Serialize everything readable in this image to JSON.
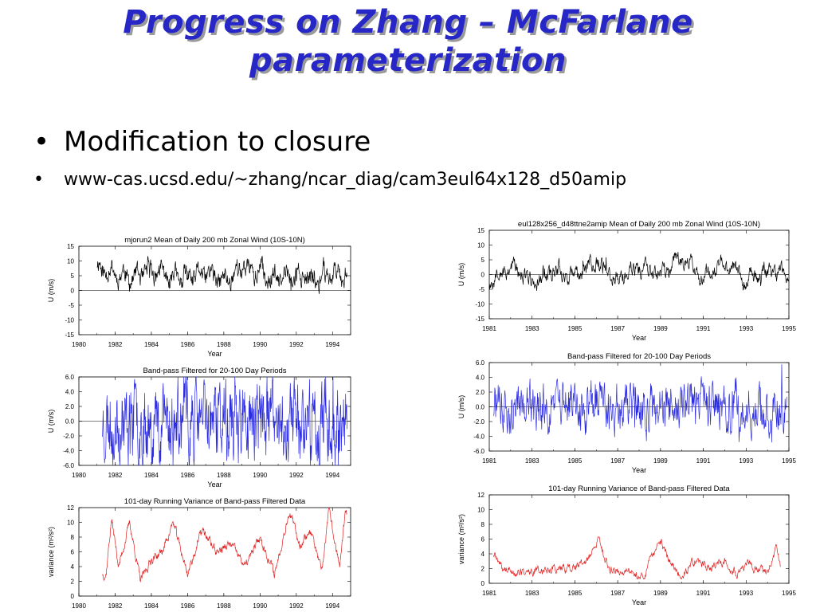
{
  "slide": {
    "title_line1": "Progress on Zhang – McFarlane",
    "title_line2": "parameterization",
    "bullets": [
      "Modification to closure",
      "www-cas.ucsd.edu/~zhang/ncar_diag/cam3eul64x128_d50amip"
    ]
  },
  "colors": {
    "title": "#2727c8",
    "title_shadow": "#9a9a9a",
    "wind": "#000000",
    "filtered": "#2b2be0",
    "variance": "#e02020"
  },
  "chart_data": [
    {
      "type": "line",
      "panel": "left-top",
      "title": "mjorun2 Mean of Daily 200 mb Zonal Wind (10S-10N)",
      "xlabel": "Year",
      "ylabel": "U (m/s)",
      "xlim": [
        1980,
        1995
      ],
      "ylim": [
        -15,
        15
      ],
      "xticks": [
        "1980",
        "1982",
        "1984",
        "1986",
        "1988",
        "1990",
        "1992",
        "1994"
      ],
      "yticks": [
        "15",
        "10",
        "5",
        "0",
        "-5",
        "-10",
        "-15"
      ],
      "xrange": [
        1981,
        1994.8
      ],
      "base": 5,
      "amp": 5.5,
      "noise": 2.5,
      "color": "#000000",
      "seed": 11,
      "reference_line": 0,
      "x": [
        1981,
        1982,
        1983,
        1984,
        1985,
        1986,
        1987,
        1988,
        1989,
        1990,
        1991,
        1992,
        1993,
        1994
      ],
      "y": [
        8,
        6,
        4,
        7,
        5,
        4,
        6,
        3,
        8,
        6,
        4,
        5,
        3,
        6
      ]
    },
    {
      "type": "line",
      "panel": "left-middle",
      "title": "Band-pass Filtered for 20-100 Day Periods",
      "xlabel": "Year",
      "ylabel": "U (m/s)",
      "xlim": [
        1980,
        1995
      ],
      "ylim": [
        -6,
        6
      ],
      "xticks": [
        "1980",
        "1982",
        "1984",
        "1986",
        "1988",
        "1990",
        "1992",
        "1994"
      ],
      "yticks": [
        "6.0",
        "4.0",
        "2.0",
        "0.0",
        "-2.0",
        "-4.0",
        "-6.0"
      ],
      "xrange": [
        1981.3,
        1994.8
      ],
      "base": 0,
      "amp": 0,
      "noise": 4.2,
      "color": "#2b2be0",
      "seed": 23,
      "reference_line": 0,
      "x": [
        1982,
        1984,
        1986,
        1988,
        1990,
        1992,
        1994
      ],
      "y": [
        0,
        0,
        0,
        0,
        0,
        0,
        0
      ]
    },
    {
      "type": "line",
      "panel": "left-bottom",
      "title": "101-day Running Variance of Band-pass Filtered Data",
      "xlabel": "Year",
      "ylabel": "variance (m²/s²)",
      "xlim": [
        1980,
        1995
      ],
      "ylim": [
        0,
        12
      ],
      "xticks": [
        "1980",
        "1982",
        "1984",
        "1986",
        "1988",
        "1990",
        "1992",
        "1994"
      ],
      "yticks": [
        "12",
        "10",
        "8",
        "6",
        "4",
        "2",
        "0"
      ],
      "xrange": [
        1981.3,
        1994.8
      ],
      "color": "#e02020",
      "seed": 37,
      "variance": true,
      "x": [
        1981.5,
        1981.8,
        1982.2,
        1982.8,
        1983.4,
        1984,
        1984.6,
        1985.2,
        1986,
        1986.8,
        1987.6,
        1988.4,
        1989.2,
        1990,
        1990.8,
        1991.6,
        1992.2,
        1992.8,
        1993.4,
        1993.8,
        1994.4,
        1994.7
      ],
      "y": [
        3,
        10.5,
        4,
        10,
        2,
        5,
        6,
        10,
        3,
        9,
        6,
        7,
        4,
        8,
        3,
        11.5,
        7,
        9,
        3,
        11.5,
        4,
        11
      ]
    },
    {
      "type": "line",
      "panel": "right-top",
      "title": "eul128x256_d48ttne2amip Mean of Daily 200 mb Zonal Wind (10S-10N)",
      "xlabel": "Year",
      "ylabel": "U (m/s)",
      "xlim": [
        1981,
        1995
      ],
      "ylim": [
        -15,
        15
      ],
      "xticks": [
        "1981",
        "1983",
        "1985",
        "1987",
        "1989",
        "1991",
        "1993",
        "1995"
      ],
      "yticks": [
        "15",
        "10",
        "5",
        "0",
        "-5",
        "-10",
        "-15"
      ],
      "xrange": [
        1981,
        1995
      ],
      "base": 1,
      "amp": 4,
      "noise": 2.2,
      "color": "#000000",
      "seed": 53,
      "reference_line": 0,
      "x": [
        1981,
        1982,
        1983,
        1984,
        1985,
        1986,
        1987,
        1988,
        1989,
        1990,
        1991,
        1992,
        1993,
        1994,
        1995
      ],
      "y": [
        -2,
        3,
        -3,
        2,
        -1,
        5,
        -2,
        3,
        0,
        6,
        -1,
        4,
        -2,
        1,
        0
      ]
    },
    {
      "type": "line",
      "panel": "right-middle",
      "title": "Band-pass Filtered for 20-100 Day Periods",
      "xlabel": "Year",
      "ylabel": "U (m/s)",
      "xlim": [
        1981,
        1995
      ],
      "ylim": [
        -6,
        6
      ],
      "xticks": [
        "1981",
        "1983",
        "1985",
        "1987",
        "1989",
        "1991",
        "1993",
        "1995"
      ],
      "yticks": [
        "6.0",
        "4.0",
        "2.0",
        "0.0",
        "-2.0",
        "-4.0",
        "-6.0"
      ],
      "xrange": [
        1981.2,
        1994.9
      ],
      "base": 0,
      "amp": 0,
      "noise": 2.6,
      "color": "#2b2be0",
      "seed": 71,
      "reference_line": 0,
      "x": [
        1982,
        1984,
        1986,
        1988,
        1990,
        1992,
        1994
      ],
      "y": [
        0,
        0,
        0,
        0,
        0,
        0,
        0
      ]
    },
    {
      "type": "line",
      "panel": "right-bottom",
      "title": "101-day Running Variance of Band-pass Filtered Data",
      "xlabel": "Year",
      "ylabel": "variance (m²/s²)",
      "xlim": [
        1981,
        1995
      ],
      "ylim": [
        0,
        12
      ],
      "xticks": [
        "1981",
        "1983",
        "1985",
        "1987",
        "1989",
        "1991",
        "1993",
        "1995"
      ],
      "yticks": [
        "12",
        "10",
        "8",
        "6",
        "4",
        "2",
        "0"
      ],
      "xrange": [
        1981.2,
        1994.6
      ],
      "color": "#e02020",
      "seed": 89,
      "variance": true,
      "x": [
        1981.2,
        1981.6,
        1982.2,
        1983,
        1983.8,
        1984.6,
        1985.4,
        1985.8,
        1986.1,
        1986.6,
        1987.4,
        1988.2,
        1989,
        1989.4,
        1990,
        1990.6,
        1991.2,
        1992,
        1992.6,
        1993.2,
        1994,
        1994.4,
        1994.6
      ],
      "y": [
        4,
        2,
        1.5,
        1.5,
        2,
        2,
        2.5,
        4,
        6,
        2,
        1.5,
        1,
        6,
        3,
        1,
        3,
        2,
        3,
        1.5,
        2.5,
        1.5,
        4.5,
        2
      ]
    }
  ]
}
